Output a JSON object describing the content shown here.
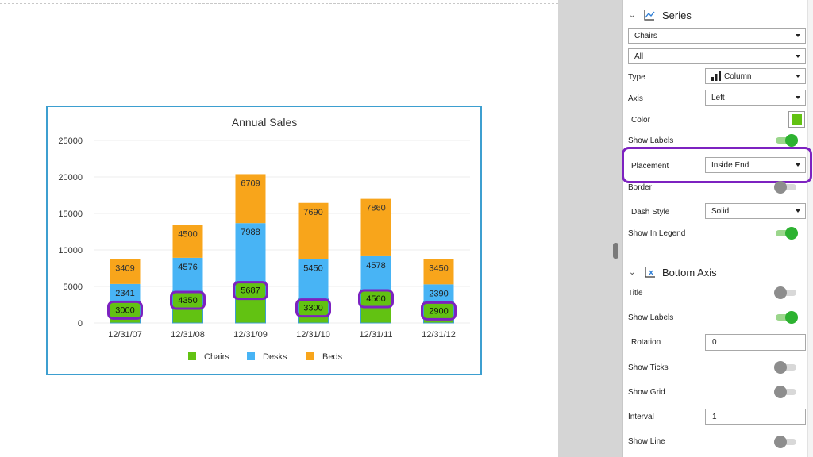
{
  "chart_data": {
    "type": "bar",
    "stacked": true,
    "title": "Annual Sales",
    "categories": [
      "12/31/07",
      "12/31/08",
      "12/31/09",
      "12/31/10",
      "12/31/11",
      "12/31/12"
    ],
    "series": [
      {
        "name": "Chairs",
        "color": "#62c212",
        "values": [
          3000,
          4350,
          5687,
          3300,
          4560,
          2900
        ]
      },
      {
        "name": "Desks",
        "color": "#48b4f5",
        "values": [
          2341,
          4576,
          7988,
          5450,
          4578,
          2390
        ]
      },
      {
        "name": "Beds",
        "color": "#f8a51b",
        "values": [
          3409,
          4500,
          6709,
          7690,
          7860,
          3450
        ]
      }
    ],
    "ylim": [
      0,
      25000
    ],
    "yticks": [
      "25000",
      "20000",
      "15000",
      "10000",
      "5000",
      "0"
    ],
    "ytick_values": [
      25000,
      20000,
      15000,
      10000,
      5000,
      0
    ],
    "data_labels": true,
    "label_placement": "Inside End",
    "highlighted_series": "Chairs",
    "grid": true,
    "legend": "bottom"
  },
  "panel": {
    "series_section": {
      "title": "Series",
      "series_select": "Chairs",
      "scope_select": "All",
      "type_label": "Type",
      "type_value": "Column",
      "axis_label": "Axis",
      "axis_value": "Left",
      "color_label": "Color",
      "color_value": "#62c212",
      "show_labels_label": "Show Labels",
      "show_labels": true,
      "placement_label": "Placement",
      "placement_value": "Inside End",
      "border_label": "Border",
      "border": false,
      "dash_style_label": "Dash Style",
      "dash_style_value": "Solid",
      "show_in_legend_label": "Show In Legend",
      "show_in_legend": true
    },
    "bottom_axis_section": {
      "title": "Bottom Axis",
      "title_label": "Title",
      "title_toggle": false,
      "show_labels_label": "Show Labels",
      "show_labels": true,
      "rotation_label": "Rotation",
      "rotation_value": "0",
      "show_ticks_label": "Show Ticks",
      "show_ticks": false,
      "show_grid_label": "Show Grid",
      "show_grid": false,
      "interval_label": "Interval",
      "interval_value": "1",
      "show_line_label": "Show Line",
      "show_line": false
    }
  },
  "colors": {
    "chart_border": "#3d9fd0",
    "highlight": "#7d22c0",
    "toggle_on": "#2db231",
    "toggle_off": "#8d8d8d",
    "gutter": "#d5d5d5"
  }
}
